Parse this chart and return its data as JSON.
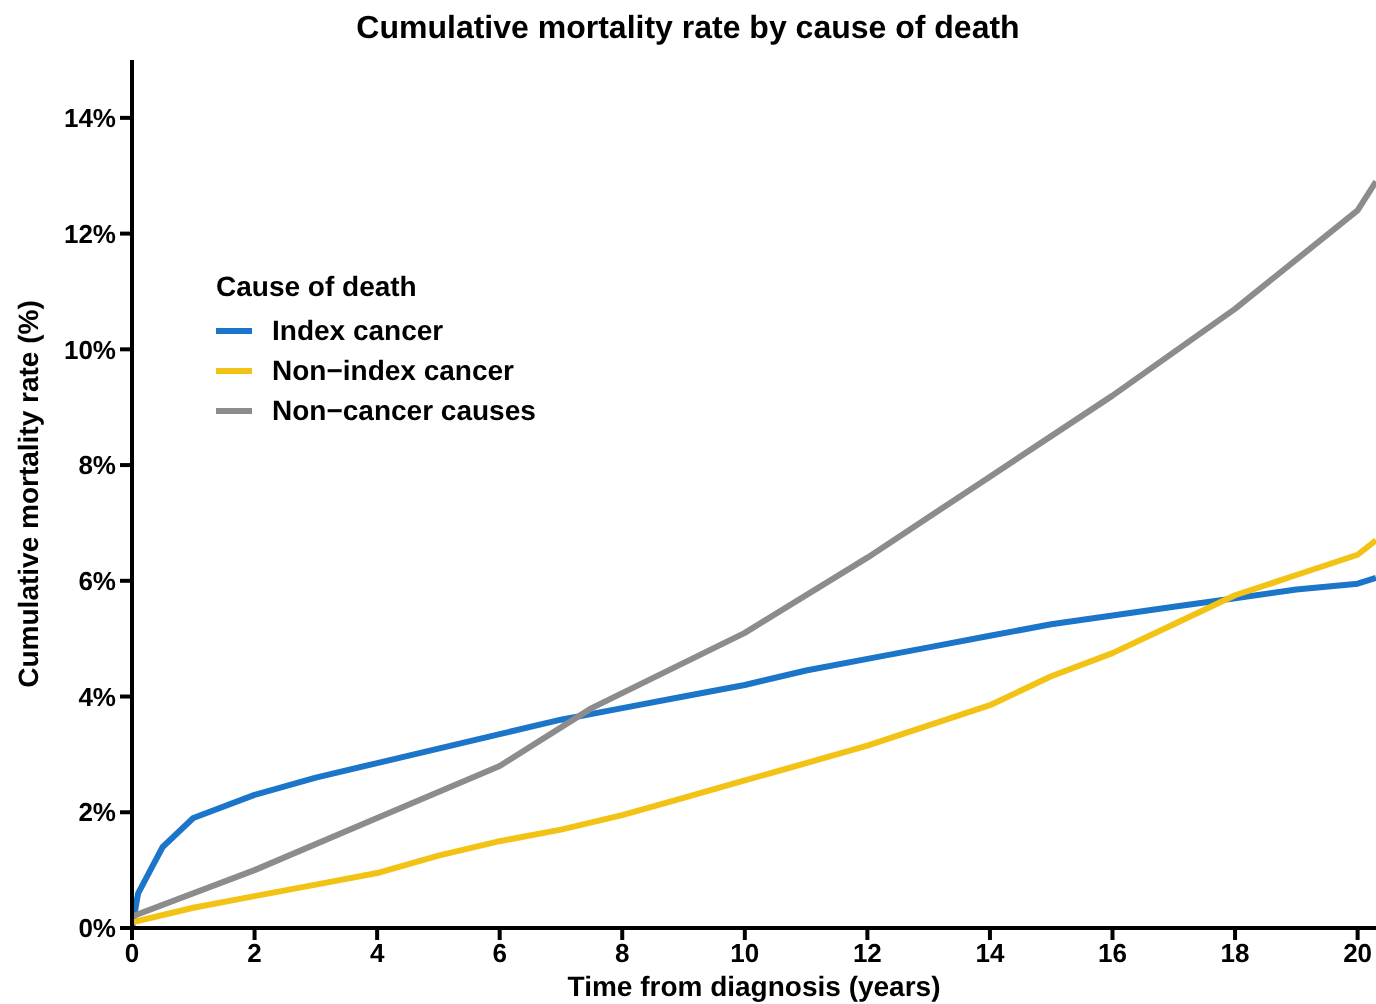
{
  "chart_data": {
    "type": "line",
    "title": "Cumulative mortality rate by cause of death",
    "xlabel": "Time from diagnosis (years)",
    "ylabel": "Cumulative mortality rate (%)",
    "legend_title": "Cause of death",
    "legend": "top left",
    "grid": false,
    "xlim": [
      0,
      20.3
    ],
    "ylim": [
      0,
      15
    ],
    "xticks": [
      0,
      2,
      4,
      6,
      8,
      10,
      12,
      14,
      16,
      18,
      20
    ],
    "yticks": [
      {
        "value": 0,
        "label": "0%"
      },
      {
        "value": 2,
        "label": "2%"
      },
      {
        "value": 4,
        "label": "4%"
      },
      {
        "value": 6,
        "label": "6%"
      },
      {
        "value": 8,
        "label": "8%"
      },
      {
        "value": 10,
        "label": "10%"
      },
      {
        "value": 12,
        "label": "12%"
      },
      {
        "value": 14,
        "label": "14%"
      }
    ],
    "series": [
      {
        "name": "Index cancer",
        "color": "#1b75c9",
        "x": [
          0,
          0.1,
          0.3,
          0.5,
          1,
          2,
          3,
          4,
          5,
          6,
          7,
          8,
          9,
          10,
          11,
          12,
          13,
          14,
          15,
          16,
          17,
          18,
          19,
          20,
          20.3
        ],
        "values": [
          0,
          0.6,
          1.0,
          1.4,
          1.9,
          2.3,
          2.6,
          2.85,
          3.1,
          3.35,
          3.6,
          3.8,
          4.0,
          4.2,
          4.45,
          4.65,
          4.85,
          5.05,
          5.25,
          5.4,
          5.55,
          5.7,
          5.85,
          5.95,
          6.05
        ]
      },
      {
        "name": "Non−index cancer",
        "color": "#f2c314",
        "x": [
          0,
          1,
          2,
          3,
          4,
          5,
          6,
          7,
          8,
          9,
          10,
          11,
          12,
          13,
          14,
          15,
          16,
          17,
          18,
          19,
          20,
          20.3
        ],
        "values": [
          0.1,
          0.35,
          0.55,
          0.75,
          0.95,
          1.25,
          1.5,
          1.7,
          1.95,
          2.25,
          2.55,
          2.85,
          3.15,
          3.5,
          3.85,
          4.35,
          4.75,
          5.25,
          5.75,
          6.1,
          6.45,
          6.7
        ]
      },
      {
        "name": "Non−cancer causes",
        "color": "#8c8c8c",
        "x": [
          0,
          2,
          4,
          6,
          7.5,
          10,
          12,
          14,
          16,
          18,
          20,
          20.3
        ],
        "values": [
          0.2,
          1.0,
          1.9,
          2.8,
          3.8,
          5.1,
          6.4,
          7.8,
          9.2,
          10.7,
          12.4,
          12.9
        ]
      }
    ]
  }
}
